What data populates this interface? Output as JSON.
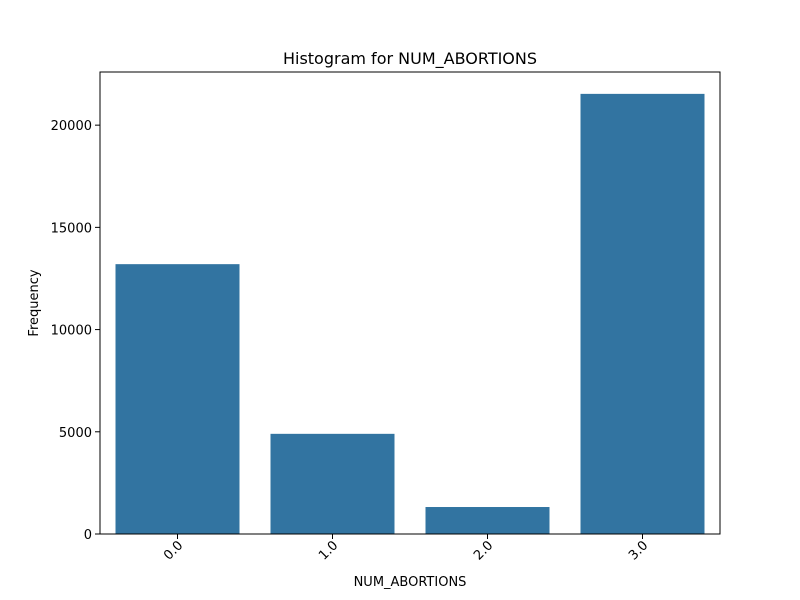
{
  "chart_data": {
    "type": "bar",
    "title": "Histogram for NUM_ABORTIONS",
    "xlabel": "NUM_ABORTIONS",
    "ylabel": "Frequency",
    "categories": [
      "0.0",
      "1.0",
      "2.0",
      "3.0"
    ],
    "values": [
      13200,
      4900,
      1320,
      21530
    ],
    "ylim": [
      0,
      22600
    ],
    "yticks": [
      0,
      5000,
      10000,
      15000,
      20000
    ],
    "x_tick_rotation": 45,
    "bar_color": "#3274a1",
    "grid": false,
    "legend": "none"
  }
}
